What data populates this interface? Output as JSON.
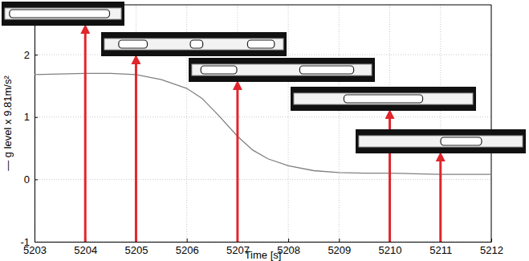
{
  "chart_data": {
    "type": "line",
    "xlabel": "Time [s]",
    "ylabel": "— g level x 9.81m/s²",
    "x": [
      5203,
      5203.5,
      5204,
      5204.5,
      5205,
      5205.5,
      5206,
      5206.3,
      5206.6,
      5207,
      5207.3,
      5207.6,
      5208,
      5208.5,
      5209,
      5209.5,
      5210,
      5210.5,
      5211,
      5211.5,
      5212
    ],
    "series": [
      {
        "color": "#808080",
        "values": [
          1.68,
          1.69,
          1.7,
          1.7,
          1.68,
          1.6,
          1.46,
          1.3,
          1.05,
          0.69,
          0.47,
          0.33,
          0.22,
          0.14,
          0.11,
          0.1,
          0.1,
          0.09,
          0.08,
          0.08,
          0.08
        ]
      }
    ],
    "snapshot_times": [
      5204,
      5205,
      5207,
      5210,
      5211
    ],
    "xlim": [
      5203,
      5212
    ],
    "xticks": [
      5203,
      5204,
      5205,
      5206,
      5207,
      5208,
      5209,
      5210,
      5211,
      5212
    ],
    "ylim": [
      -1,
      2.8
    ],
    "yticks": [
      -1,
      0,
      1,
      2
    ],
    "grid": true
  }
}
